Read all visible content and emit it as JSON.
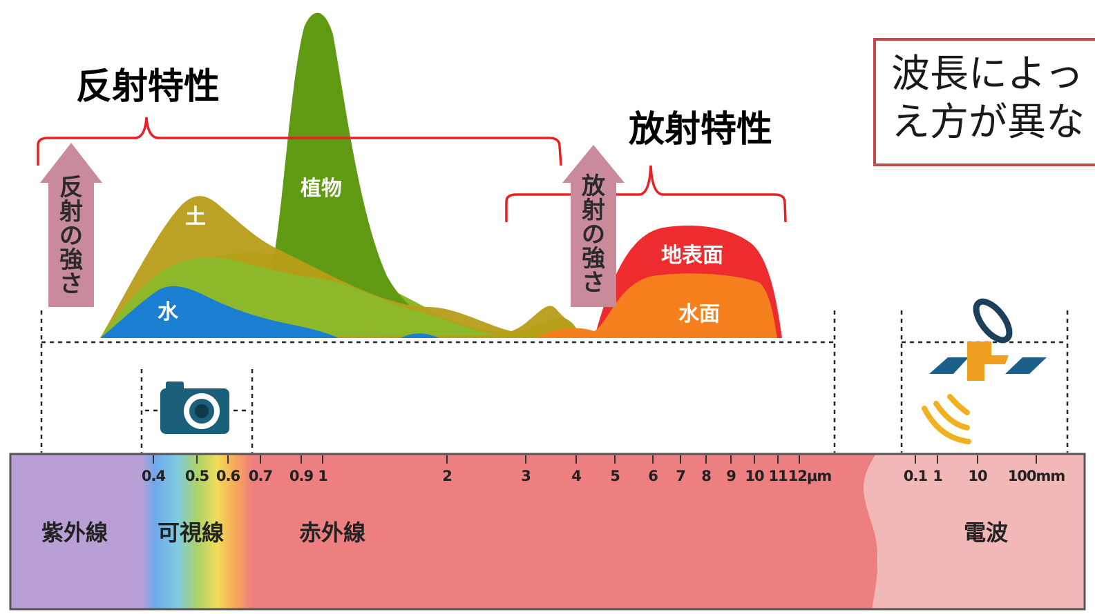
{
  "titles": {
    "reflection": "反射特性",
    "emission": "放射特性"
  },
  "arrows": {
    "reflection_intensity": [
      "反",
      "射",
      "の",
      "強",
      "さ"
    ],
    "emission_intensity": [
      "放",
      "射",
      "の",
      "強",
      "さ"
    ]
  },
  "areas": {
    "soil": "土",
    "vegetation": "植物",
    "water": "水",
    "ground_surface": "地表面",
    "water_surface": "水面"
  },
  "note": {
    "line1": "波長によっ",
    "line2": "え方が異な"
  },
  "axis_ticks": {
    "optical": [
      "0.4",
      "0.5",
      "0.6",
      "0.7",
      "0.9",
      "1",
      "2",
      "3",
      "4",
      "5",
      "6",
      "7",
      "8",
      "9",
      "10",
      "11",
      "12μm"
    ],
    "radio": [
      "0.1",
      "1",
      "10",
      "100mm"
    ]
  },
  "bands": {
    "ultraviolet": "紫外線",
    "visible": "可視線",
    "infrared": "赤外線",
    "radio": "電波"
  },
  "icons": {
    "camera": "camera-icon",
    "satellite": "radar-satellite-icon"
  },
  "colors": {
    "vegetation": "#5f9a12",
    "vegetation_light": "#8db82a",
    "soil": "#b89d18",
    "water": "#1a7fd0",
    "ground_surface": "#ee2b2e",
    "water_surface": "#f7801e",
    "bracket": "#e82020",
    "arrow": "#c98a9c",
    "uv_band": "#b8a0d6",
    "ir_band": "#ee7f80",
    "radio_band": "#f2b8b8",
    "note_border": "#c44a4a"
  }
}
